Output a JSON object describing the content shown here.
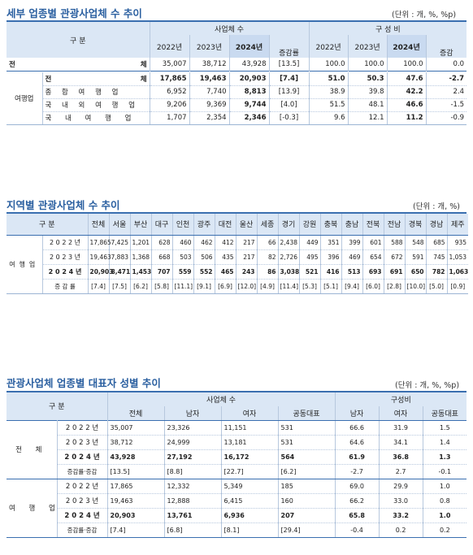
{
  "t1": {
    "title": "세부 업종별 관광사업체 수 추이",
    "unit": "(단위 : 개, %, %p)",
    "h_gubun": "구 분",
    "h_biz": "사업체 수",
    "h_comp": "구 성 비",
    "years": [
      "2022년",
      "2023년",
      "2024년"
    ],
    "h_chg": "증감률",
    "h_chg2": "증감",
    "total_a": "전",
    "total_b": "체",
    "total": [
      "35,007",
      "38,712",
      "43,928",
      "[13.5]",
      "100.0",
      "100.0",
      "100.0",
      "0.0"
    ],
    "group": "여행업",
    "rows": [
      {
        "label": "전 체",
        "v": [
          "17,865",
          "19,463",
          "20,903",
          "[7.4]",
          "51.0",
          "50.3",
          "47.6",
          "-2.7"
        ]
      },
      {
        "label": "종 합 여 행 업",
        "v": [
          "6,952",
          "7,740",
          "8,813",
          "[13.9]",
          "38.9",
          "39.8",
          "42.2",
          "2.4"
        ]
      },
      {
        "label": "국 내 외 여 행 업",
        "v": [
          "9,206",
          "9,369",
          "9,744",
          "[4.0]",
          "51.5",
          "48.1",
          "46.6",
          "-1.5"
        ]
      },
      {
        "label": "국 내 여 행 업",
        "v": [
          "1,707",
          "2,354",
          "2,346",
          "[-0.3]",
          "9.6",
          "12.1",
          "11.2",
          "-0.9"
        ]
      }
    ]
  },
  "t2": {
    "title": "지역별 관광사업체 수 추이",
    "unit": "(단위 : 개, %)",
    "h_gubun": "구 분",
    "cols": [
      "전체",
      "서울",
      "부산",
      "대구",
      "인천",
      "광주",
      "대전",
      "울산",
      "세종",
      "경기",
      "강원",
      "충북",
      "충남",
      "전북",
      "전남",
      "경북",
      "경남",
      "제주"
    ],
    "group": "여행업",
    "rows": [
      {
        "label": "2 0 2 2 년",
        "v": [
          "17,865",
          "7,425",
          "1,201",
          "628",
          "460",
          "462",
          "412",
          "217",
          "66",
          "2,438",
          "449",
          "351",
          "399",
          "601",
          "588",
          "548",
          "685",
          "935"
        ]
      },
      {
        "label": "2 0 2 3 년",
        "v": [
          "19,463",
          "7,883",
          "1,368",
          "668",
          "503",
          "506",
          "435",
          "217",
          "82",
          "2,726",
          "495",
          "396",
          "469",
          "654",
          "672",
          "591",
          "745",
          "1,053"
        ]
      },
      {
        "label": "2 0 2 4 년",
        "v": [
          "20,903",
          "8,471",
          "1,453",
          "707",
          "559",
          "552",
          "465",
          "243",
          "86",
          "3,038",
          "521",
          "416",
          "513",
          "693",
          "691",
          "650",
          "782",
          "1,063"
        ]
      },
      {
        "label": "증 감 률",
        "v": [
          "[7.4]",
          "[7.5]",
          "[6.2]",
          "[5.8]",
          "[11.1]",
          "[9.1]",
          "[6.9]",
          "[12.0]",
          "[4.9]",
          "[11.4]",
          "[5.3]",
          "[5.1]",
          "[9.4]",
          "[6.0]",
          "[2.8]",
          "[10.0]",
          "[5.0]",
          "[0.9]"
        ]
      }
    ]
  },
  "t3": {
    "title": "관광사업체 업종별 대표자 성별 추이",
    "unit": "(단위 : 개, %, %p)",
    "h_gubun": "구 분",
    "h_biz": "사업체 수",
    "h_comp": "구성비",
    "cols_biz": [
      "전체",
      "남자",
      "여자",
      "공동대표"
    ],
    "cols_comp": [
      "남자",
      "여자",
      "공동대표"
    ],
    "groups": [
      {
        "name": "전 체",
        "rows": [
          {
            "label": "2 0 2 2 년",
            "v": [
              "35,007",
              "23,326",
              "11,151",
              "531",
              "66.6",
              "31.9",
              "1.5"
            ]
          },
          {
            "label": "2 0 2 3 년",
            "v": [
              "38,712",
              "24,999",
              "13,181",
              "531",
              "64.6",
              "34.1",
              "1.4"
            ]
          },
          {
            "label": "2 0 2 4 년",
            "v": [
              "43,928",
              "27,192",
              "16,172",
              "564",
              "61.9",
              "36.8",
              "1.3"
            ]
          },
          {
            "label": "증감률·증감",
            "v": [
              "[13.5]",
              "[8.8]",
              "[22.7]",
              "[6.2]",
              "-2.7",
              "2.7",
              "-0.1"
            ]
          }
        ]
      },
      {
        "name": "여 행 업",
        "rows": [
          {
            "label": "2 0 2 2 년",
            "v": [
              "17,865",
              "12,332",
              "5,349",
              "185",
              "69.0",
              "29.9",
              "1.0"
            ]
          },
          {
            "label": "2 0 2 3 년",
            "v": [
              "19,463",
              "12,888",
              "6,415",
              "160",
              "66.2",
              "33.0",
              "0.8"
            ]
          },
          {
            "label": "2 0 2 4 년",
            "v": [
              "20,903",
              "13,761",
              "6,936",
              "207",
              "65.8",
              "33.2",
              "1.0"
            ]
          },
          {
            "label": "증감률·증감",
            "v": [
              "[7.4]",
              "[6.8]",
              "[8.1]",
              "[29.4]",
              "-0.4",
              "0.2",
              "0.2"
            ]
          }
        ]
      }
    ]
  }
}
